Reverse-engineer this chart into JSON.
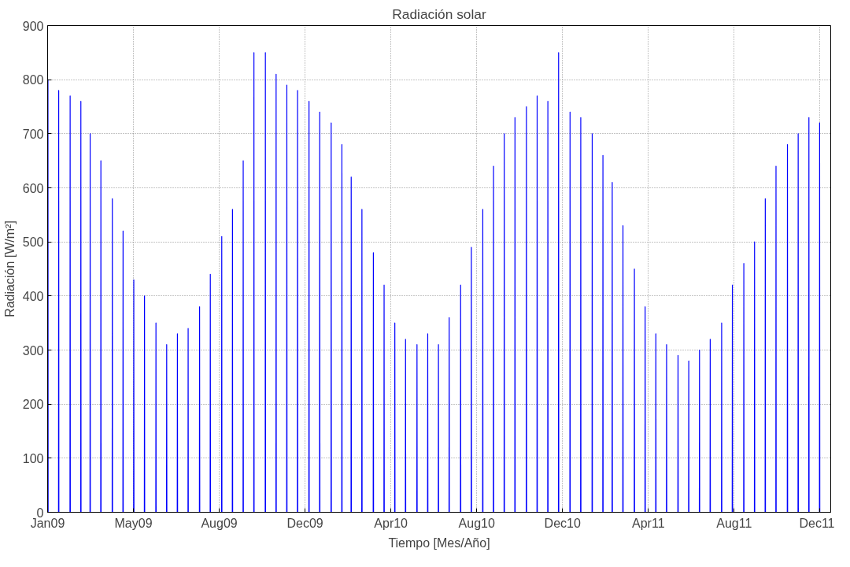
{
  "chart_data": {
    "type": "line",
    "title": "Radiación solar",
    "xlabel": "Tiempo [Mes/Año]",
    "ylabel": "Radiación [W/m²]",
    "xlim": [
      "2009-01-01",
      "2012-01-01"
    ],
    "xticks": [
      {
        "value": "2009-01-01",
        "label": "Jan09"
      },
      {
        "value": "2009-05-01",
        "label": "May09"
      },
      {
        "value": "2009-08-29",
        "label": "Aug09"
      },
      {
        "value": "2009-12-27",
        "label": "Dec09"
      },
      {
        "value": "2010-04-26",
        "label": "Apr10"
      },
      {
        "value": "2010-08-24",
        "label": "Aug10"
      },
      {
        "value": "2010-12-22",
        "label": "Dec10"
      },
      {
        "value": "2011-04-21",
        "label": "Apr11"
      },
      {
        "value": "2011-08-19",
        "label": "Aug11"
      },
      {
        "value": "2011-12-17",
        "label": "Dec11"
      }
    ],
    "ylim": [
      0,
      900
    ],
    "yticks": [
      0,
      100,
      200,
      300,
      400,
      500,
      600,
      700,
      800,
      900
    ],
    "grid": true,
    "line_style": "solid",
    "marker": "none",
    "x": [
      "2009-01-01T06:00",
      "2009-01-01T12:00",
      "2009-01-01T18:00",
      "2009-01-16T06:00",
      "2009-01-16T12:00",
      "2009-01-16T18:00",
      "2009-02-01T06:00",
      "2009-02-01T12:00",
      "2009-02-01T18:00",
      "2009-02-16T06:00",
      "2009-02-16T12:00",
      "2009-02-16T18:00",
      "2009-03-01T06:00",
      "2009-03-01T12:00",
      "2009-03-01T18:00",
      "2009-03-16T06:00",
      "2009-03-16T12:00",
      "2009-03-16T18:00",
      "2009-04-01T06:00",
      "2009-04-01T12:00",
      "2009-04-01T18:00",
      "2009-04-16T06:00",
      "2009-04-16T12:00",
      "2009-04-16T18:00",
      "2009-05-01T06:00",
      "2009-05-01T12:00",
      "2009-05-01T18:00",
      "2009-05-16T06:00",
      "2009-05-16T12:00",
      "2009-05-16T18:00",
      "2009-06-01T06:00",
      "2009-06-01T12:00",
      "2009-06-01T18:00",
      "2009-06-16T06:00",
      "2009-06-16T12:00",
      "2009-06-16T18:00",
      "2009-07-01T06:00",
      "2009-07-01T12:00",
      "2009-07-01T18:00",
      "2009-07-16T06:00",
      "2009-07-16T12:00",
      "2009-07-16T18:00",
      "2009-08-01T06:00",
      "2009-08-01T12:00",
      "2009-08-01T18:00",
      "2009-08-16T06:00",
      "2009-08-16T12:00",
      "2009-08-16T18:00",
      "2009-09-01T06:00",
      "2009-09-01T12:00",
      "2009-09-01T18:00",
      "2009-09-16T06:00",
      "2009-09-16T12:00",
      "2009-09-16T18:00",
      "2009-10-01T06:00",
      "2009-10-01T12:00",
      "2009-10-01T18:00",
      "2009-10-16T06:00",
      "2009-10-16T12:00",
      "2009-10-16T18:00",
      "2009-11-01T06:00",
      "2009-11-01T12:00",
      "2009-11-01T18:00",
      "2009-11-16T06:00",
      "2009-11-16T12:00",
      "2009-11-16T18:00",
      "2009-12-01T06:00",
      "2009-12-01T12:00",
      "2009-12-01T18:00",
      "2009-12-16T06:00",
      "2009-12-16T12:00",
      "2009-12-16T18:00",
      "2010-01-01T06:00",
      "2010-01-01T12:00",
      "2010-01-01T18:00",
      "2010-01-16T06:00",
      "2010-01-16T12:00",
      "2010-01-16T18:00",
      "2010-02-01T06:00",
      "2010-02-01T12:00",
      "2010-02-01T18:00",
      "2010-02-16T06:00",
      "2010-02-16T12:00",
      "2010-02-16T18:00",
      "2010-03-01T06:00",
      "2010-03-01T12:00",
      "2010-03-01T18:00",
      "2010-03-16T06:00",
      "2010-03-16T12:00",
      "2010-03-16T18:00",
      "2010-04-01T06:00",
      "2010-04-01T12:00",
      "2010-04-01T18:00",
      "2010-04-16T06:00",
      "2010-04-16T12:00",
      "2010-04-16T18:00",
      "2010-05-01T06:00",
      "2010-05-01T12:00",
      "2010-05-01T18:00",
      "2010-05-16T06:00",
      "2010-05-16T12:00",
      "2010-05-16T18:00",
      "2010-06-01T06:00",
      "2010-06-01T12:00",
      "2010-06-01T18:00",
      "2010-06-16T06:00",
      "2010-06-16T12:00",
      "2010-06-16T18:00",
      "2010-07-01T06:00",
      "2010-07-01T12:00",
      "2010-07-01T18:00",
      "2010-07-16T06:00",
      "2010-07-16T12:00",
      "2010-07-16T18:00",
      "2010-08-01T06:00",
      "2010-08-01T12:00",
      "2010-08-01T18:00",
      "2010-08-16T06:00",
      "2010-08-16T12:00",
      "2010-08-16T18:00",
      "2010-09-01T06:00",
      "2010-09-01T12:00",
      "2010-09-01T18:00",
      "2010-09-16T06:00",
      "2010-09-16T12:00",
      "2010-09-16T18:00",
      "2010-10-01T06:00",
      "2010-10-01T12:00",
      "2010-10-01T18:00",
      "2010-10-16T06:00",
      "2010-10-16T12:00",
      "2010-10-16T18:00",
      "2010-11-01T06:00",
      "2010-11-01T12:00",
      "2010-11-01T18:00",
      "2010-11-16T06:00",
      "2010-11-16T12:00",
      "2010-11-16T18:00",
      "2010-12-01T06:00",
      "2010-12-01T12:00",
      "2010-12-01T18:00",
      "2010-12-16T06:00",
      "2010-12-16T12:00",
      "2010-12-16T18:00",
      "2011-01-01T06:00",
      "2011-01-01T12:00",
      "2011-01-01T18:00",
      "2011-01-16T06:00",
      "2011-01-16T12:00",
      "2011-01-16T18:00",
      "2011-02-01T06:00",
      "2011-02-01T12:00",
      "2011-02-01T18:00",
      "2011-02-16T06:00",
      "2011-02-16T12:00",
      "2011-02-16T18:00",
      "2011-03-01T06:00",
      "2011-03-01T12:00",
      "2011-03-01T18:00",
      "2011-03-16T06:00",
      "2011-03-16T12:00",
      "2011-03-16T18:00",
      "2011-04-01T06:00",
      "2011-04-01T12:00",
      "2011-04-01T18:00",
      "2011-04-16T06:00",
      "2011-04-16T12:00",
      "2011-04-16T18:00",
      "2011-05-01T06:00",
      "2011-05-01T12:00",
      "2011-05-01T18:00",
      "2011-05-16T06:00",
      "2011-05-16T12:00",
      "2011-05-16T18:00",
      "2011-06-01T06:00",
      "2011-06-01T12:00",
      "2011-06-01T18:00",
      "2011-06-16T06:00",
      "2011-06-16T12:00",
      "2011-06-16T18:00",
      "2011-07-01T06:00",
      "2011-07-01T12:00",
      "2011-07-01T18:00",
      "2011-07-16T06:00",
      "2011-07-16T12:00",
      "2011-07-16T18:00",
      "2011-08-01T06:00",
      "2011-08-01T12:00",
      "2011-08-01T18:00",
      "2011-08-16T06:00",
      "2011-08-16T12:00",
      "2011-08-16T18:00",
      "2011-09-01T06:00",
      "2011-09-01T12:00",
      "2011-09-01T18:00",
      "2011-09-16T06:00",
      "2011-09-16T12:00",
      "2011-09-16T18:00",
      "2011-10-01T06:00",
      "2011-10-01T12:00",
      "2011-10-01T18:00",
      "2011-10-16T06:00",
      "2011-10-16T12:00",
      "2011-10-16T18:00",
      "2011-11-01T06:00",
      "2011-11-01T12:00",
      "2011-11-01T18:00",
      "2011-11-16T06:00",
      "2011-11-16T12:00",
      "2011-11-16T18:00",
      "2011-12-01T06:00",
      "2011-12-01T12:00",
      "2011-12-01T18:00",
      "2011-12-16T06:00",
      "2011-12-16T12:00",
      "2011-12-16T18:00"
    ],
    "series": [
      {
        "color": "#0000ff",
        "values": [
          0,
          800,
          0,
          0,
          780,
          0,
          0,
          770,
          0,
          0,
          760,
          0,
          0,
          700,
          0,
          0,
          650,
          0,
          0,
          580,
          0,
          0,
          520,
          0,
          0,
          430,
          0,
          0,
          400,
          0,
          0,
          350,
          0,
          0,
          310,
          0,
          0,
          330,
          0,
          0,
          340,
          0,
          0,
          380,
          0,
          0,
          440,
          0,
          0,
          510,
          0,
          0,
          560,
          0,
          0,
          650,
          0,
          0,
          850,
          0,
          0,
          850,
          0,
          0,
          810,
          0,
          0,
          790,
          0,
          0,
          780,
          0,
          0,
          760,
          0,
          0,
          740,
          0,
          0,
          720,
          0,
          0,
          680,
          0,
          0,
          620,
          0,
          0,
          560,
          0,
          0,
          480,
          0,
          0,
          420,
          0,
          0,
          350,
          0,
          0,
          320,
          0,
          0,
          310,
          0,
          0,
          330,
          0,
          0,
          310,
          0,
          0,
          360,
          0,
          0,
          420,
          0,
          0,
          490,
          0,
          0,
          560,
          0,
          0,
          640,
          0,
          0,
          700,
          0,
          0,
          730,
          0,
          0,
          750,
          0,
          0,
          770,
          0,
          0,
          760,
          0,
          0,
          850,
          0,
          0,
          740,
          0,
          0,
          730,
          0,
          0,
          700,
          0,
          0,
          660,
          0,
          0,
          610,
          0,
          0,
          530,
          0,
          0,
          450,
          0,
          0,
          380,
          0,
          0,
          330,
          0,
          0,
          310,
          0,
          0,
          290,
          0,
          0,
          280,
          0,
          0,
          300,
          0,
          0,
          320,
          0,
          0,
          350,
          0,
          0,
          420,
          0,
          0,
          460,
          0,
          0,
          500,
          0,
          0,
          580,
          0,
          0,
          640,
          0,
          0,
          680,
          0,
          0,
          700,
          0,
          0,
          730,
          0,
          0,
          720,
          0
        ]
      }
    ]
  }
}
